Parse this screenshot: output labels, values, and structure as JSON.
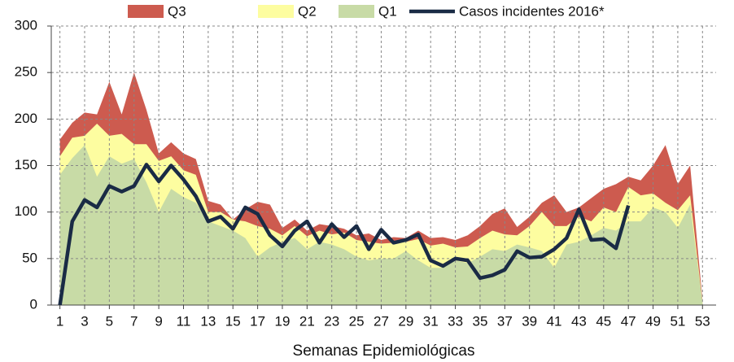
{
  "chart_data": {
    "type": "area",
    "xlabel": "Semanas Epidemiológicas",
    "x": [
      1,
      2,
      3,
      4,
      5,
      6,
      7,
      8,
      9,
      10,
      11,
      12,
      13,
      14,
      15,
      16,
      17,
      18,
      19,
      20,
      21,
      22,
      23,
      24,
      25,
      26,
      27,
      28,
      29,
      30,
      31,
      32,
      33,
      34,
      35,
      36,
      37,
      38,
      39,
      40,
      41,
      42,
      43,
      44,
      45,
      46,
      47,
      48,
      49,
      50,
      51,
      52,
      53
    ],
    "xlim": [
      0.3,
      54.1
    ],
    "xticks": [
      1,
      3,
      5,
      7,
      9,
      11,
      13,
      15,
      17,
      19,
      21,
      23,
      25,
      27,
      29,
      31,
      33,
      35,
      37,
      39,
      41,
      43,
      45,
      47,
      49,
      51,
      53
    ],
    "ylim": [
      0,
      300
    ],
    "yticks": [
      0,
      50,
      100,
      150,
      200,
      250,
      300
    ],
    "grid": true,
    "series": [
      {
        "name": "Q3",
        "type": "area",
        "color": "#cd5b4f",
        "values": [
          178,
          196,
          207,
          205,
          240,
          205,
          250,
          210,
          163,
          175,
          163,
          157,
          112,
          108,
          92,
          103,
          111,
          108,
          83,
          92,
          80,
          87,
          85,
          82,
          75,
          77,
          70,
          73,
          72,
          80,
          72,
          73,
          70,
          75,
          85,
          98,
          104,
          84,
          95,
          110,
          118,
          100,
          105,
          115,
          125,
          130,
          138,
          134,
          150,
          172,
          130,
          150,
          5
        ]
      },
      {
        "name": "Q2",
        "type": "area",
        "color": "#fdfda0",
        "values": [
          160,
          180,
          182,
          195,
          182,
          184,
          173,
          173,
          155,
          160,
          145,
          140,
          100,
          100,
          92,
          90,
          85,
          82,
          75,
          85,
          74,
          80,
          76,
          78,
          70,
          68,
          66,
          67,
          68,
          71,
          64,
          66,
          62,
          63,
          72,
          80,
          76,
          75,
          85,
          100,
          85,
          85,
          95,
          90,
          105,
          100,
          127,
          118,
          120,
          110,
          102,
          118,
          3
        ]
      },
      {
        "name": "Q1",
        "type": "area",
        "color": "#c8dba6",
        "values": [
          140,
          158,
          172,
          138,
          160,
          152,
          157,
          132,
          100,
          125,
          116,
          110,
          90,
          85,
          80,
          72,
          52,
          62,
          68,
          72,
          60,
          68,
          65,
          60,
          52,
          48,
          50,
          50,
          58,
          48,
          40,
          40,
          48,
          45,
          52,
          60,
          58,
          65,
          62,
          58,
          40,
          65,
          68,
          75,
          83,
          80,
          90,
          90,
          105,
          100,
          83,
          108,
          2
        ]
      },
      {
        "name": "Casos incidentes 2016*",
        "type": "line",
        "color": "#1a2b45",
        "values": [
          0,
          90,
          113,
          105,
          128,
          122,
          128,
          151,
          133,
          150,
          135,
          117,
          90,
          95,
          82,
          105,
          98,
          75,
          63,
          80,
          90,
          67,
          87,
          73,
          85,
          60,
          81,
          67,
          70,
          76,
          48,
          42,
          50,
          48,
          29,
          32,
          38,
          58,
          51,
          52,
          60,
          72,
          103,
          70,
          71,
          61,
          107,
          null,
          null,
          null,
          null,
          null,
          null
        ]
      }
    ]
  }
}
